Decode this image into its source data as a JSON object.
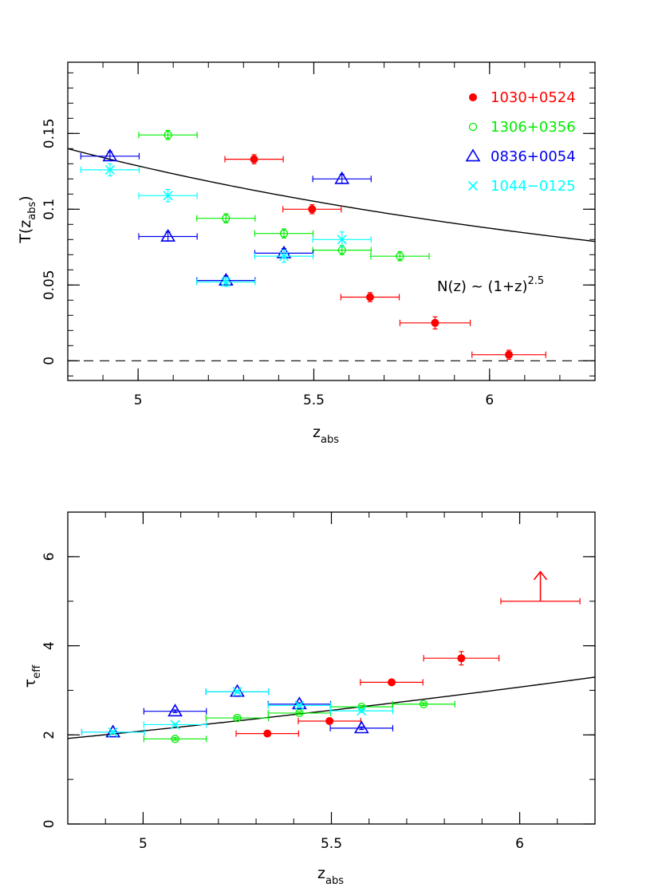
{
  "chart_data": [
    {
      "type": "scatter",
      "panel": "top",
      "xlabel": "z",
      "xlabel_sub": "abs",
      "ylabel": "T(z",
      "ylabel_sub": "abs",
      "ylabel_tail": ")",
      "xlim": [
        4.8,
        6.3
      ],
      "ylim": [
        -0.013,
        0.197
      ],
      "x_ticks": [
        5,
        5.5,
        6
      ],
      "x_tick_labels": [
        "5",
        "5.5",
        "6"
      ],
      "y_ticks": [
        0,
        0.05,
        0.1,
        0.15
      ],
      "y_tick_labels": [
        "0",
        "0.05",
        "0.1",
        "0.15"
      ],
      "grid": false,
      "legend_position": "top-right",
      "reference_line": {
        "y": 0,
        "style": "dashed"
      },
      "model_curve": {
        "label": "N(z) ~ (1+z)",
        "label_exponent": "2.5",
        "form": "y = 0.1327 * ((1 + 4.925) / (1 + x))^2.5",
        "x_range": [
          4.8,
          6.3
        ]
      },
      "series": [
        {
          "name": "1030+0524",
          "color": "#ff0000",
          "marker": "filled-circle",
          "points": [
            {
              "x": 5.33,
              "y": 0.133,
              "xerr": 0.083,
              "yerr": 0.003
            },
            {
              "x": 5.495,
              "y": 0.1,
              "xerr": 0.083,
              "yerr": 0.003
            },
            {
              "x": 5.66,
              "y": 0.042,
              "xerr": 0.083,
              "yerr": 0.003
            },
            {
              "x": 5.845,
              "y": 0.025,
              "xerr": 0.1,
              "yerr": 0.004
            },
            {
              "x": 6.055,
              "y": 0.004,
              "xerr": 0.105,
              "yerr": 0.003
            }
          ]
        },
        {
          "name": "1306+0356",
          "color": "#00ee00",
          "marker": "open-circle",
          "points": [
            {
              "x": 5.085,
              "y": 0.149,
              "xerr": 0.083,
              "yerr": 0.003
            },
            {
              "x": 5.25,
              "y": 0.094,
              "xerr": 0.083,
              "yerr": 0.003
            },
            {
              "x": 5.415,
              "y": 0.084,
              "xerr": 0.083,
              "yerr": 0.003
            },
            {
              "x": 5.58,
              "y": 0.073,
              "xerr": 0.083,
              "yerr": 0.003
            },
            {
              "x": 5.745,
              "y": 0.069,
              "xerr": 0.083,
              "yerr": 0.003
            }
          ]
        },
        {
          "name": "0836+0054",
          "color": "#0000ee",
          "marker": "open-triangle",
          "points": [
            {
              "x": 4.92,
              "y": 0.135,
              "xerr": 0.083,
              "yerr": 0.003
            },
            {
              "x": 5.085,
              "y": 0.082,
              "xerr": 0.083,
              "yerr": 0.003
            },
            {
              "x": 5.25,
              "y": 0.053,
              "xerr": 0.083,
              "yerr": 0.003
            },
            {
              "x": 5.415,
              "y": 0.071,
              "xerr": 0.083,
              "yerr": 0.003
            },
            {
              "x": 5.58,
              "y": 0.12,
              "xerr": 0.083,
              "yerr": 0.003
            }
          ]
        },
        {
          "name": "1044−0125",
          "color": "#00ffff",
          "marker": "cross",
          "points": [
            {
              "x": 4.92,
              "y": 0.126,
              "xerr": 0.083,
              "yerr": 0.004
            },
            {
              "x": 5.085,
              "y": 0.109,
              "xerr": 0.083,
              "yerr": 0.004
            },
            {
              "x": 5.25,
              "y": 0.052,
              "xerr": 0.083,
              "yerr": 0.003
            },
            {
              "x": 5.415,
              "y": 0.069,
              "xerr": 0.083,
              "yerr": 0.004
            },
            {
              "x": 5.58,
              "y": 0.08,
              "xerr": 0.083,
              "yerr": 0.005
            }
          ]
        }
      ]
    },
    {
      "type": "scatter",
      "panel": "bottom",
      "xlabel": "z",
      "xlabel_sub": "abs",
      "ylabel": "τ",
      "ylabel_sub": "eff",
      "ylabel_tail": "",
      "xlim": [
        4.8,
        6.2
      ],
      "ylim": [
        0,
        7
      ],
      "x_ticks": [
        5,
        5.5,
        6
      ],
      "x_tick_labels": [
        "5",
        "5.5",
        "6"
      ],
      "y_ticks": [
        0,
        2,
        4,
        6
      ],
      "y_tick_labels": [
        "0",
        "2",
        "4",
        "6"
      ],
      "grid": false,
      "model_curve": {
        "form": "y = 2.025 * ((1 + x) / (1 + 4.925))^2.5 (tau = -ln of top-panel curve)",
        "x_range": [
          4.8,
          6.2
        ]
      },
      "lower_limit": {
        "x": 6.055,
        "y": 5.0,
        "xerr": 0.105,
        "color": "#ff0000"
      },
      "series": [
        {
          "name": "1030+0524",
          "color": "#ff0000",
          "marker": "filled-circle",
          "points": [
            {
              "x": 5.33,
              "y": 2.03,
              "xerr": 0.083,
              "yerr": 0.03
            },
            {
              "x": 5.495,
              "y": 2.31,
              "xerr": 0.083,
              "yerr": 0.03
            },
            {
              "x": 5.66,
              "y": 3.18,
              "xerr": 0.083,
              "yerr": 0.06
            },
            {
              "x": 5.845,
              "y": 3.72,
              "xerr": 0.1,
              "yerr": 0.15
            }
          ]
        },
        {
          "name": "1306+0356",
          "color": "#00ee00",
          "marker": "open-circle",
          "points": [
            {
              "x": 5.085,
              "y": 1.91,
              "xerr": 0.083,
              "yerr": 0.03
            },
            {
              "x": 5.25,
              "y": 2.38,
              "xerr": 0.083,
              "yerr": 0.03
            },
            {
              "x": 5.415,
              "y": 2.49,
              "xerr": 0.083,
              "yerr": 0.03
            },
            {
              "x": 5.58,
              "y": 2.63,
              "xerr": 0.083,
              "yerr": 0.03
            },
            {
              "x": 5.745,
              "y": 2.69,
              "xerr": 0.083,
              "yerr": 0.03
            }
          ]
        },
        {
          "name": "0836+0054",
          "color": "#0000ee",
          "marker": "open-triangle",
          "points": [
            {
              "x": 4.92,
              "y": 2.06,
              "xerr": 0.083,
              "yerr": 0.03
            },
            {
              "x": 5.085,
              "y": 2.53,
              "xerr": 0.083,
              "yerr": 0.03
            },
            {
              "x": 5.25,
              "y": 2.97,
              "xerr": 0.083,
              "yerr": 0.03
            },
            {
              "x": 5.415,
              "y": 2.69,
              "xerr": 0.083,
              "yerr": 0.03
            },
            {
              "x": 5.58,
              "y": 2.15,
              "xerr": 0.083,
              "yerr": 0.03
            }
          ]
        },
        {
          "name": "1044−0125",
          "color": "#00ffff",
          "marker": "cross",
          "points": [
            {
              "x": 4.92,
              "y": 2.06,
              "xerr": 0.083,
              "yerr": 0.03
            },
            {
              "x": 5.085,
              "y": 2.23,
              "xerr": 0.083,
              "yerr": 0.03
            },
            {
              "x": 5.25,
              "y": 2.97,
              "xerr": 0.083,
              "yerr": 0.03
            },
            {
              "x": 5.415,
              "y": 2.66,
              "xerr": 0.083,
              "yerr": 0.03
            },
            {
              "x": 5.58,
              "y": 2.54,
              "xerr": 0.083,
              "yerr": 0.03
            }
          ]
        }
      ]
    }
  ]
}
